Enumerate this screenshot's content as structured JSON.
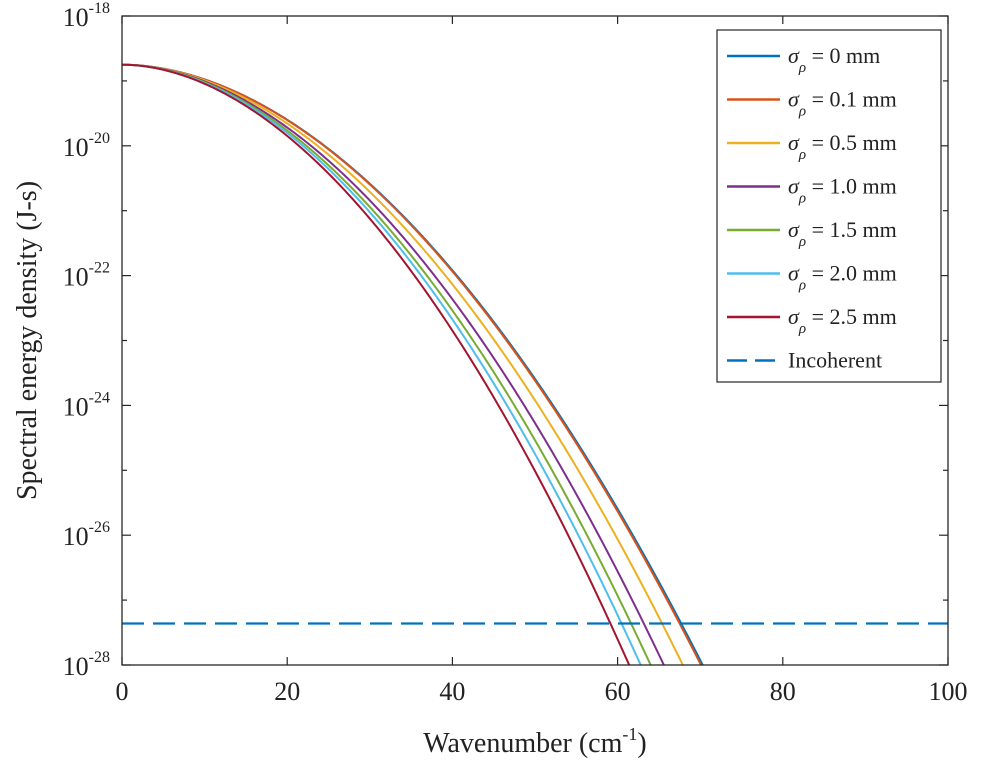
{
  "chart_data": {
    "type": "line",
    "title": "",
    "xlabel": {
      "base": "Wavenumber (cm",
      "sup": "-1",
      "suffix": ")"
    },
    "ylabel": "Spectral energy density (J-s)",
    "xlim": [
      0,
      100
    ],
    "ylim_log10": [
      -28,
      -18
    ],
    "yscale": "log",
    "x_ticks": [
      "0",
      "20",
      "40",
      "60",
      "80",
      "100"
    ],
    "y_ticks": [
      {
        "base": "10",
        "exp": "-18"
      },
      {
        "base": "10",
        "exp": "-20"
      },
      {
        "base": "10",
        "exp": "-22"
      },
      {
        "base": "10",
        "exp": "-24"
      },
      {
        "base": "10",
        "exp": "-26"
      },
      {
        "base": "10",
        "exp": "-28"
      }
    ],
    "series": [
      {
        "name": "σρ = 0 mm",
        "sigma": "σ",
        "sub": "ρ",
        "rest": "= 0 mm",
        "color": "#0072BD",
        "dash": false,
        "log10_y0": -18.75,
        "x_at_min": 70.3
      },
      {
        "name": "σρ = 0.1 mm",
        "sigma": "σ",
        "sub": "ρ",
        "rest": "= 0.1 mm",
        "color": "#D95319",
        "dash": false,
        "log10_y0": -18.75,
        "x_at_min": 70.1
      },
      {
        "name": "σρ = 0.5 mm",
        "sigma": "σ",
        "sub": "ρ",
        "rest": "= 0.5 mm",
        "color": "#EDB120",
        "dash": false,
        "log10_y0": -18.75,
        "x_at_min": 67.9
      },
      {
        "name": "σρ = 1.0 mm",
        "sigma": "σ",
        "sub": "ρ",
        "rest": "= 1.0 mm",
        "color": "#7E2F8E",
        "dash": false,
        "log10_y0": -18.75,
        "x_at_min": 65.6
      },
      {
        "name": "σρ = 1.5 mm",
        "sigma": "σ",
        "sub": "ρ",
        "rest": "= 1.5 mm",
        "color": "#77AC30",
        "dash": false,
        "log10_y0": -18.75,
        "x_at_min": 64.0
      },
      {
        "name": "σρ = 2.0 mm",
        "sigma": "σ",
        "sub": "ρ",
        "rest": "= 2.0 mm",
        "color": "#4DBEEE",
        "dash": false,
        "log10_y0": -18.75,
        "x_at_min": 62.8
      },
      {
        "name": "σρ = 2.5 mm",
        "sigma": "σ",
        "sub": "ρ",
        "rest": "= 2.5 mm",
        "color": "#A2142F",
        "dash": false,
        "log10_y0": -18.75,
        "x_at_min": 61.4
      },
      {
        "name": "Incoherent",
        "color": "#0072BD",
        "dash": true,
        "log10_y_const": -27.36
      }
    ],
    "legend_location": "top-right",
    "grid": false
  }
}
